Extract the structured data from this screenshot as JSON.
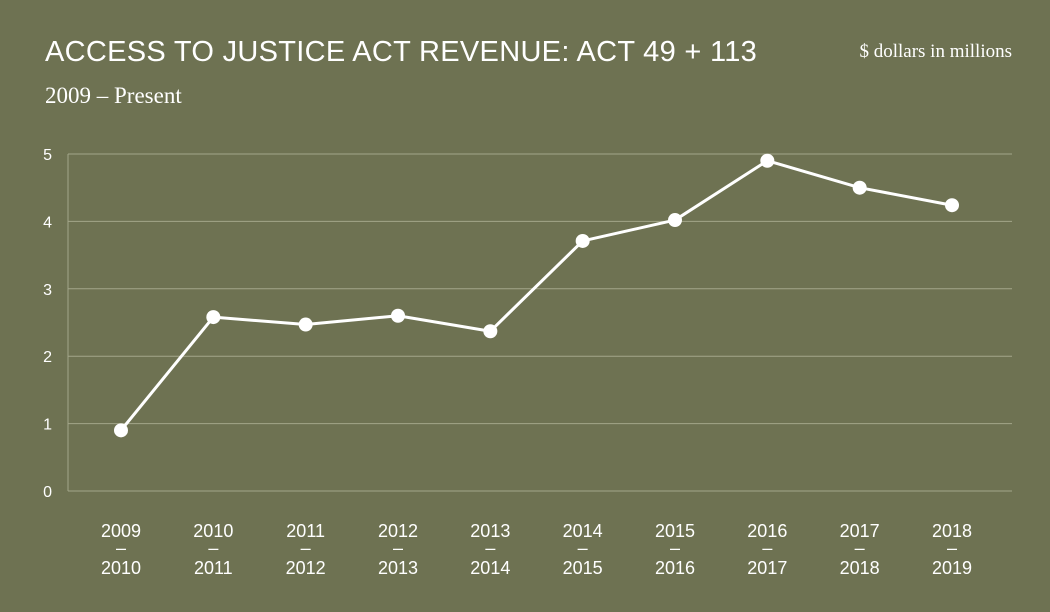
{
  "chart_data": {
    "type": "line",
    "title": "ACCESS TO JUSTICE ACT REVENUE: ACT 49 + 113",
    "subtitle": "2009 – Present",
    "unit_note": "$ dollars in millions",
    "categories": [
      [
        "2009",
        "–",
        "2010"
      ],
      [
        "2010",
        "–",
        "2011"
      ],
      [
        "2011",
        "–",
        "2012"
      ],
      [
        "2012",
        "–",
        "2013"
      ],
      [
        "2013",
        "–",
        "2014"
      ],
      [
        "2014",
        "–",
        "2015"
      ],
      [
        "2015",
        "–",
        "2016"
      ],
      [
        "2016",
        "–",
        "2017"
      ],
      [
        "2017",
        "–",
        "2018"
      ],
      [
        "2018",
        "–",
        "2019"
      ]
    ],
    "values": [
      0.9,
      2.58,
      2.47,
      2.6,
      2.37,
      3.71,
      4.02,
      4.9,
      4.5,
      4.24
    ],
    "y_ticks": [
      "0",
      "1",
      "2",
      "3",
      "4",
      "5"
    ],
    "ylim": [
      0,
      5
    ],
    "grid": true,
    "colors": {
      "background": "#6e7252",
      "line": "#ffffff",
      "grid": "#a3a68a"
    }
  }
}
